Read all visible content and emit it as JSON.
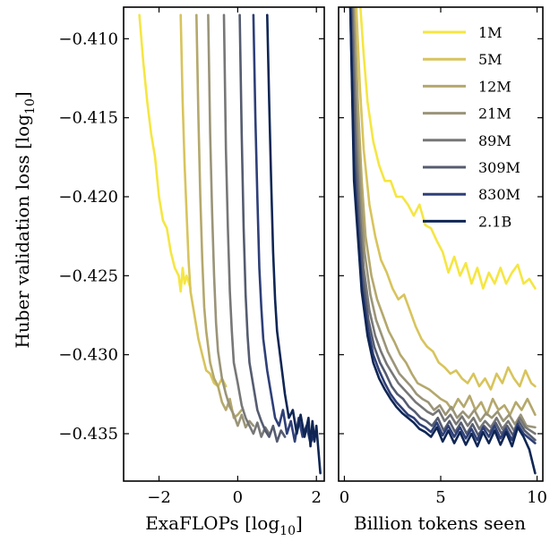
{
  "chart_data": [
    {
      "type": "line",
      "xlabel": "ExaFLOPs [log",
      "xlabel_sub": "10",
      "xlabel_end": "]",
      "ylabel": "Huber validation loss [log",
      "ylabel_sub": "10",
      "ylabel_end": "]",
      "xlim": [
        -2.9,
        2.2
      ],
      "ylim": [
        -0.438,
        -0.408
      ],
      "xticks": [
        -2,
        0,
        2
      ],
      "xtick_labels": [
        "−2",
        "0",
        "2"
      ],
      "yticks": [
        -0.41,
        -0.415,
        -0.42,
        -0.425,
        -0.43,
        -0.435
      ],
      "ytick_labels": [
        "−0.410",
        "−0.415",
        "−0.420",
        "−0.425",
        "−0.430",
        "−0.435"
      ],
      "series": [
        {
          "name": "1M",
          "color": "#f5e642",
          "x": [
            -2.5,
            -2.45,
            -2.4,
            -2.3,
            -2.2,
            -2.1,
            -2.0,
            -1.9,
            -1.8,
            -1.7,
            -1.6,
            -1.5,
            -1.45,
            -1.4,
            -1.35,
            -1.3,
            -1.2
          ],
          "y": [
            -0.4085,
            -0.41,
            -0.4115,
            -0.414,
            -0.416,
            -0.4175,
            -0.42,
            -0.4215,
            -0.422,
            -0.4235,
            -0.4245,
            -0.425,
            -0.426,
            -0.4245,
            -0.4255,
            -0.425,
            -0.4258
          ]
        },
        {
          "name": "5M",
          "color": "#d8c45c",
          "x": [
            -1.45,
            -1.4,
            -1.35,
            -1.3,
            -1.25,
            -1.2,
            -1.1,
            -1.0,
            -0.9,
            -0.8,
            -0.7,
            -0.6,
            -0.5,
            -0.4,
            -0.3
          ],
          "y": [
            -0.4085,
            -0.414,
            -0.418,
            -0.421,
            -0.424,
            -0.426,
            -0.4275,
            -0.429,
            -0.43,
            -0.431,
            -0.4312,
            -0.4318,
            -0.432,
            -0.4315,
            -0.432
          ]
        },
        {
          "name": "12M",
          "color": "#b4a86c",
          "x": [
            -1.05,
            -1.0,
            -0.95,
            -0.9,
            -0.85,
            -0.8,
            -0.7,
            -0.6,
            -0.5,
            -0.4,
            -0.3,
            -0.2,
            -0.1,
            0.0,
            0.1
          ],
          "y": [
            -0.4085,
            -0.415,
            -0.42,
            -0.424,
            -0.427,
            -0.4285,
            -0.4305,
            -0.4315,
            -0.432,
            -0.433,
            -0.4335,
            -0.4328,
            -0.434,
            -0.4338,
            -0.4335
          ]
        },
        {
          "name": "21M",
          "color": "#9a9478",
          "x": [
            -0.75,
            -0.7,
            -0.65,
            -0.6,
            -0.55,
            -0.5,
            -0.4,
            -0.3,
            -0.2,
            -0.1,
            0.0,
            0.1,
            0.2,
            0.3,
            0.4
          ],
          "y": [
            -0.4085,
            -0.416,
            -0.421,
            -0.425,
            -0.428,
            -0.4298,
            -0.4315,
            -0.4325,
            -0.4333,
            -0.4338,
            -0.4345,
            -0.4338,
            -0.4346,
            -0.4342,
            -0.4345
          ]
        },
        {
          "name": "89M",
          "color": "#777777",
          "x": [
            -0.35,
            -0.3,
            -0.25,
            -0.2,
            -0.15,
            -0.1,
            0.0,
            0.1,
            0.2,
            0.3,
            0.4,
            0.5,
            0.6,
            0.7,
            0.8
          ],
          "y": [
            -0.4085,
            -0.417,
            -0.422,
            -0.426,
            -0.4285,
            -0.4305,
            -0.4318,
            -0.4332,
            -0.434,
            -0.4345,
            -0.435,
            -0.4343,
            -0.4352,
            -0.4346,
            -0.435
          ]
        },
        {
          "name": "309M",
          "color": "#555c70",
          "x": [
            0.05,
            0.1,
            0.15,
            0.2,
            0.25,
            0.3,
            0.4,
            0.5,
            0.6,
            0.7,
            0.8,
            0.9,
            1.0,
            1.1,
            1.2
          ],
          "y": [
            -0.4085,
            -0.416,
            -0.422,
            -0.4262,
            -0.4288,
            -0.4305,
            -0.432,
            -0.4335,
            -0.4342,
            -0.4348,
            -0.4352,
            -0.4345,
            -0.4355,
            -0.4348,
            -0.4352
          ]
        },
        {
          "name": "830M",
          "color": "#2e3f78",
          "x": [
            0.4,
            0.45,
            0.5,
            0.55,
            0.6,
            0.65,
            0.75,
            0.85,
            0.95,
            1.05,
            1.15,
            1.25,
            1.35,
            1.45,
            1.55,
            1.65,
            1.75,
            1.85,
            1.95
          ],
          "y": [
            -0.4085,
            -0.415,
            -0.42,
            -0.4245,
            -0.427,
            -0.429,
            -0.431,
            -0.4325,
            -0.434,
            -0.4345,
            -0.4335,
            -0.435,
            -0.4342,
            -0.4355,
            -0.434,
            -0.4352,
            -0.4345,
            -0.4356,
            -0.435
          ]
        },
        {
          "name": "2.1B",
          "color": "#0f2654",
          "x": [
            0.75,
            0.8,
            0.85,
            0.9,
            0.95,
            1.0,
            1.1,
            1.2,
            1.3,
            1.4,
            1.5,
            1.6,
            1.7,
            1.8,
            1.85,
            1.9,
            1.95,
            2.0,
            2.05,
            2.1
          ],
          "y": [
            -0.4085,
            -0.414,
            -0.419,
            -0.4235,
            -0.4265,
            -0.4285,
            -0.4305,
            -0.4325,
            -0.434,
            -0.4335,
            -0.435,
            -0.4338,
            -0.4352,
            -0.434,
            -0.4358,
            -0.4342,
            -0.4355,
            -0.4345,
            -0.436,
            -0.4375
          ]
        }
      ]
    },
    {
      "type": "line",
      "xlabel": "Billion tokens seen",
      "xlim": [
        -0.3,
        10.3
      ],
      "ylim": [
        -0.438,
        -0.408
      ],
      "xticks": [
        0,
        5,
        10
      ],
      "xtick_labels": [
        "0",
        "5",
        "10"
      ],
      "yticks": [
        -0.41,
        -0.415,
        -0.42,
        -0.425,
        -0.43,
        -0.435
      ],
      "legend": {
        "placement": "top-right"
      },
      "series": [
        {
          "name": "1M",
          "color": "#f5e642",
          "x": [
            0.8,
            1.0,
            1.2,
            1.5,
            1.8,
            2.1,
            2.4,
            2.7,
            3.0,
            3.3,
            3.6,
            3.9,
            4.2,
            4.5,
            4.8,
            5.1,
            5.4,
            5.7,
            6.0,
            6.3,
            6.6,
            6.9,
            7.2,
            7.5,
            7.8,
            8.1,
            8.4,
            8.7,
            9.0,
            9.3,
            9.6,
            9.9
          ],
          "y": [
            -0.4075,
            -0.411,
            -0.414,
            -0.4165,
            -0.418,
            -0.419,
            -0.419,
            -0.42,
            -0.42,
            -0.4205,
            -0.4212,
            -0.4205,
            -0.4218,
            -0.422,
            -0.4228,
            -0.4235,
            -0.4248,
            -0.4238,
            -0.425,
            -0.4242,
            -0.4255,
            -0.4245,
            -0.4258,
            -0.4248,
            -0.4255,
            -0.4245,
            -0.4255,
            -0.4248,
            -0.4243,
            -0.4255,
            -0.4252,
            -0.4258
          ]
        },
        {
          "name": "5M",
          "color": "#d8c45c",
          "x": [
            0.6,
            0.8,
            1.0,
            1.3,
            1.6,
            1.9,
            2.2,
            2.5,
            2.8,
            3.1,
            3.4,
            3.7,
            4.0,
            4.3,
            4.6,
            4.9,
            5.2,
            5.5,
            5.8,
            6.1,
            6.4,
            6.7,
            7.0,
            7.3,
            7.6,
            7.9,
            8.2,
            8.5,
            8.8,
            9.1,
            9.4,
            9.7,
            9.9
          ],
          "y": [
            -0.4075,
            -0.413,
            -0.417,
            -0.4205,
            -0.4225,
            -0.424,
            -0.4248,
            -0.4258,
            -0.4265,
            -0.4262,
            -0.4272,
            -0.4282,
            -0.429,
            -0.4295,
            -0.4298,
            -0.4305,
            -0.4308,
            -0.4312,
            -0.431,
            -0.4315,
            -0.4318,
            -0.4312,
            -0.432,
            -0.4315,
            -0.4322,
            -0.4312,
            -0.4318,
            -0.4308,
            -0.4315,
            -0.432,
            -0.431,
            -0.4318,
            -0.432
          ]
        },
        {
          "name": "12M",
          "color": "#b4a86c",
          "x": [
            0.5,
            0.7,
            0.9,
            1.1,
            1.4,
            1.7,
            2.0,
            2.3,
            2.6,
            2.9,
            3.2,
            3.5,
            3.8,
            4.1,
            4.4,
            4.7,
            5.0,
            5.3,
            5.6,
            5.9,
            6.2,
            6.5,
            6.8,
            7.1,
            7.4,
            7.7,
            8.0,
            8.3,
            8.6,
            8.9,
            9.2,
            9.5,
            9.9
          ],
          "y": [
            -0.4075,
            -0.414,
            -0.419,
            -0.4225,
            -0.425,
            -0.4265,
            -0.4275,
            -0.4285,
            -0.4292,
            -0.43,
            -0.4305,
            -0.4312,
            -0.4318,
            -0.432,
            -0.4322,
            -0.4325,
            -0.4328,
            -0.433,
            -0.4335,
            -0.4328,
            -0.4333,
            -0.4326,
            -0.4335,
            -0.433,
            -0.4338,
            -0.4328,
            -0.4335,
            -0.4332,
            -0.4338,
            -0.433,
            -0.4335,
            -0.4328,
            -0.4338
          ]
        },
        {
          "name": "21M",
          "color": "#9a9478",
          "x": [
            0.45,
            0.65,
            0.85,
            1.05,
            1.35,
            1.65,
            1.95,
            2.25,
            2.55,
            2.85,
            3.15,
            3.45,
            3.75,
            4.05,
            4.35,
            4.65,
            4.95,
            5.25,
            5.55,
            5.85,
            6.15,
            6.45,
            6.75,
            7.05,
            7.35,
            7.65,
            7.95,
            8.25,
            8.55,
            8.85,
            9.15,
            9.45,
            9.9
          ],
          "y": [
            -0.4075,
            -0.415,
            -0.42,
            -0.4235,
            -0.4262,
            -0.4278,
            -0.4288,
            -0.4298,
            -0.4305,
            -0.4312,
            -0.4316,
            -0.432,
            -0.4325,
            -0.4328,
            -0.433,
            -0.4335,
            -0.4332,
            -0.4338,
            -0.4333,
            -0.434,
            -0.4336,
            -0.434,
            -0.4335,
            -0.4342,
            -0.4337,
            -0.434,
            -0.4336,
            -0.4342,
            -0.4338,
            -0.4344,
            -0.4338,
            -0.4345,
            -0.4346
          ]
        },
        {
          "name": "89M",
          "color": "#777777",
          "x": [
            0.4,
            0.6,
            0.8,
            1.0,
            1.3,
            1.6,
            1.9,
            2.2,
            2.5,
            2.8,
            3.1,
            3.4,
            3.7,
            4.0,
            4.3,
            4.6,
            4.9,
            5.2,
            5.5,
            5.8,
            6.1,
            6.4,
            6.7,
            7.0,
            7.3,
            7.6,
            7.9,
            8.2,
            8.5,
            8.8,
            9.1,
            9.4,
            9.9
          ],
          "y": [
            -0.4075,
            -0.416,
            -0.421,
            -0.4245,
            -0.4272,
            -0.4288,
            -0.4298,
            -0.4306,
            -0.4312,
            -0.4318,
            -0.4322,
            -0.4326,
            -0.433,
            -0.4333,
            -0.4336,
            -0.4338,
            -0.4335,
            -0.4342,
            -0.4338,
            -0.4344,
            -0.4339,
            -0.4345,
            -0.434,
            -0.4347,
            -0.4342,
            -0.4346,
            -0.434,
            -0.4347,
            -0.4342,
            -0.4348,
            -0.434,
            -0.4346,
            -0.435
          ]
        },
        {
          "name": "309M",
          "color": "#555c70",
          "x": [
            0.35,
            0.55,
            0.75,
            0.95,
            1.25,
            1.55,
            1.85,
            2.15,
            2.45,
            2.75,
            3.05,
            3.35,
            3.65,
            3.95,
            4.25,
            4.55,
            4.85,
            5.15,
            5.45,
            5.75,
            6.05,
            6.35,
            6.65,
            6.95,
            7.25,
            7.55,
            7.85,
            8.15,
            8.45,
            8.75,
            9.05,
            9.35,
            9.9
          ],
          "y": [
            -0.4075,
            -0.417,
            -0.4215,
            -0.425,
            -0.4278,
            -0.4295,
            -0.4305,
            -0.4312,
            -0.432,
            -0.4325,
            -0.4328,
            -0.4333,
            -0.4336,
            -0.434,
            -0.4342,
            -0.4345,
            -0.434,
            -0.4348,
            -0.4342,
            -0.4349,
            -0.4343,
            -0.435,
            -0.4344,
            -0.4351,
            -0.4345,
            -0.4349,
            -0.4343,
            -0.435,
            -0.4345,
            -0.4351,
            -0.4342,
            -0.4348,
            -0.4354
          ]
        },
        {
          "name": "830M",
          "color": "#2e3f78",
          "x": [
            0.3,
            0.5,
            0.7,
            0.9,
            1.2,
            1.5,
            1.8,
            2.1,
            2.4,
            2.7,
            3.0,
            3.3,
            3.6,
            3.9,
            4.2,
            4.5,
            4.8,
            5.1,
            5.4,
            5.7,
            6.0,
            6.3,
            6.6,
            6.9,
            7.2,
            7.5,
            7.8,
            8.1,
            8.4,
            8.7,
            9.0,
            9.3,
            9.9
          ],
          "y": [
            -0.4075,
            -0.418,
            -0.422,
            -0.4255,
            -0.4282,
            -0.43,
            -0.431,
            -0.4318,
            -0.4325,
            -0.433,
            -0.4334,
            -0.4338,
            -0.434,
            -0.4344,
            -0.4346,
            -0.4349,
            -0.4343,
            -0.4351,
            -0.4345,
            -0.4352,
            -0.4346,
            -0.4353,
            -0.4347,
            -0.4354,
            -0.4346,
            -0.4352,
            -0.4345,
            -0.4353,
            -0.4347,
            -0.4354,
            -0.4344,
            -0.435,
            -0.4356
          ]
        },
        {
          "name": "2.1B",
          "color": "#0f2654",
          "x": [
            0.3,
            0.5,
            0.7,
            0.9,
            1.2,
            1.5,
            1.8,
            2.1,
            2.4,
            2.7,
            3.0,
            3.3,
            3.6,
            3.9,
            4.2,
            4.5,
            4.8,
            5.1,
            5.4,
            5.7,
            6.0,
            6.3,
            6.6,
            6.9,
            7.2,
            7.5,
            7.8,
            8.1,
            8.4,
            8.7,
            9.0,
            9.3,
            9.6,
            9.9
          ],
          "y": [
            -0.4075,
            -0.419,
            -0.4225,
            -0.426,
            -0.4288,
            -0.4305,
            -0.4315,
            -0.4322,
            -0.4328,
            -0.4333,
            -0.4337,
            -0.434,
            -0.4343,
            -0.4347,
            -0.4349,
            -0.4352,
            -0.4346,
            -0.4355,
            -0.4348,
            -0.4356,
            -0.4349,
            -0.4357,
            -0.435,
            -0.4358,
            -0.4349,
            -0.4356,
            -0.4348,
            -0.4357,
            -0.4349,
            -0.4358,
            -0.4346,
            -0.4352,
            -0.436,
            -0.4375
          ]
        }
      ]
    }
  ]
}
